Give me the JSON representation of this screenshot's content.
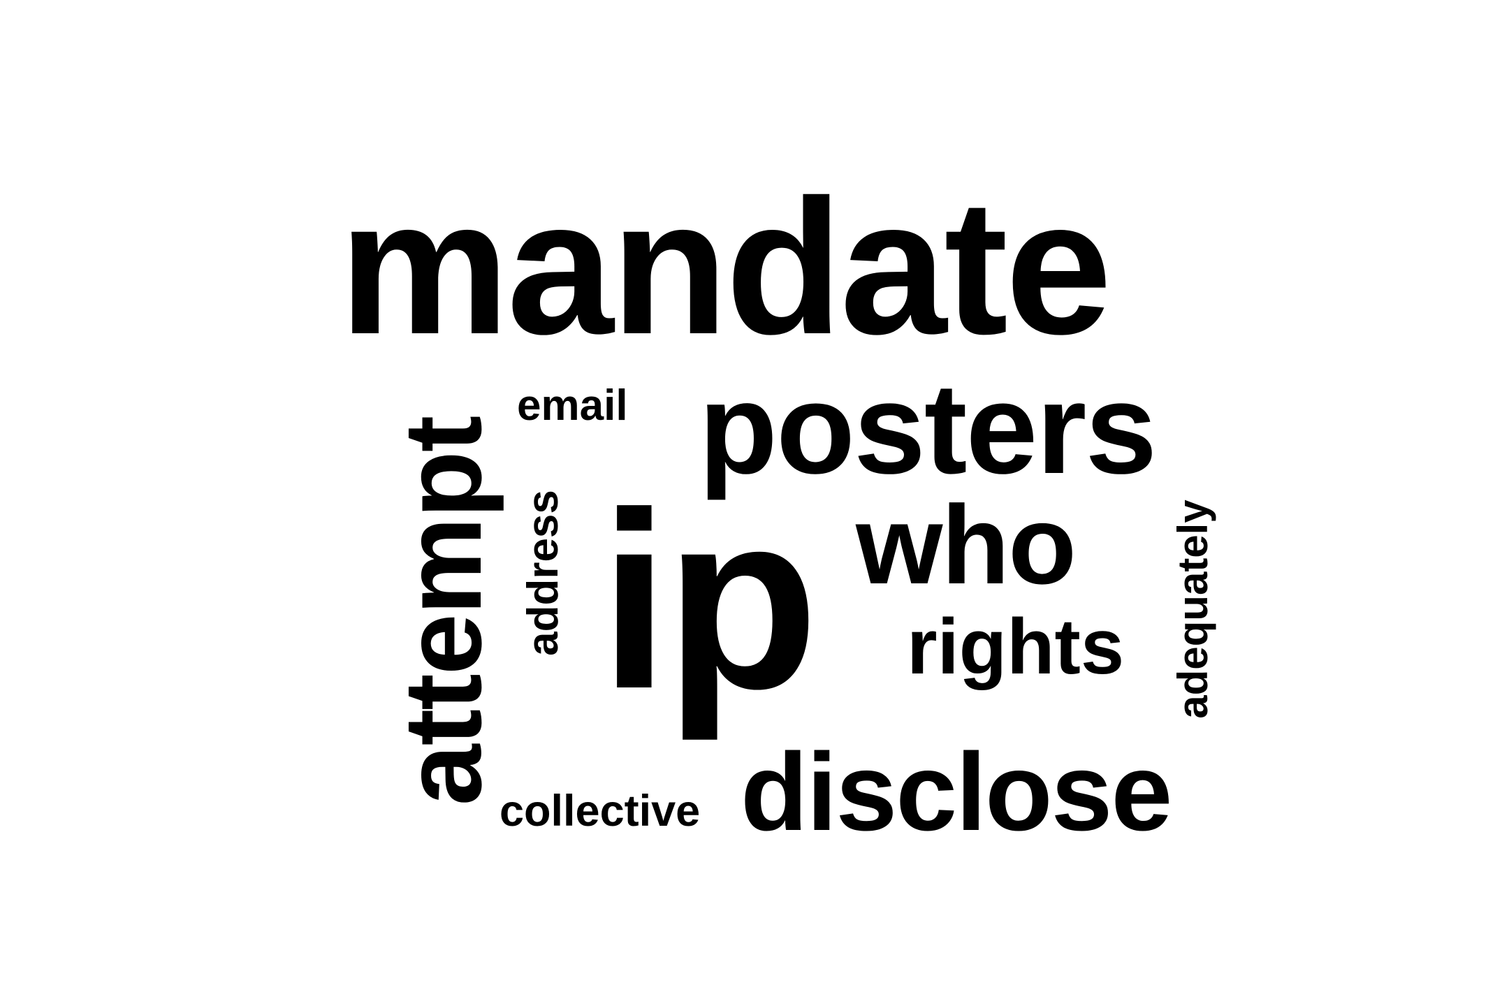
{
  "word_cloud": {
    "text_color": "#000000",
    "background_color": "#ffffff",
    "words": {
      "mandate": "mandate",
      "posters": "posters",
      "email": "email",
      "attempt": "attempt",
      "address": "address",
      "ip": "ip",
      "who": "who",
      "rights": "rights",
      "adequately": "adequately",
      "disclose": "disclose",
      "collective": "collective"
    }
  }
}
